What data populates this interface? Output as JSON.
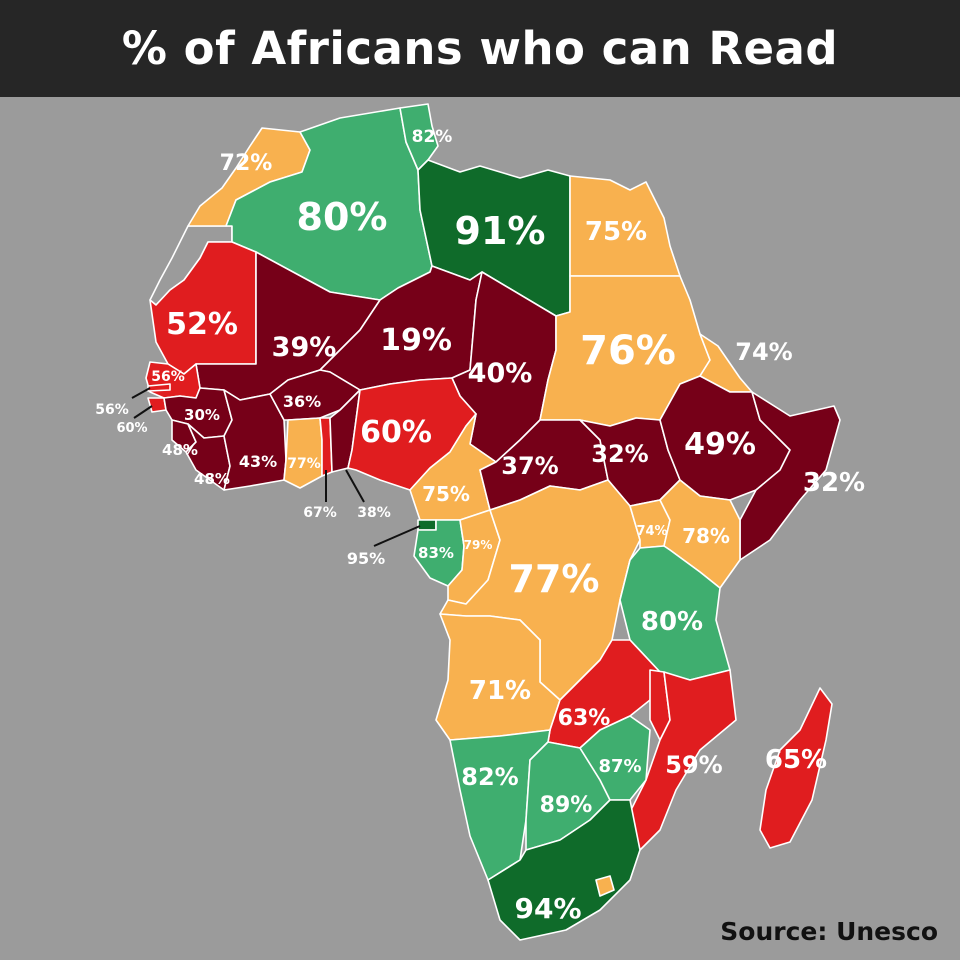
{
  "title": "% of Africans who can Read",
  "source": "Source: Unesco",
  "colors": {
    "background": "#9b9b9b",
    "title_bar": "#262626",
    "dark_green": "#0f6b2a",
    "light_green": "#3fae6f",
    "orange": "#f8b14f",
    "red": "#e01d1f",
    "maroon": "#760018",
    "border": "#ffffff"
  },
  "regions": {
    "morocco": {
      "name": "Morocco",
      "value": "72%"
    },
    "algeria": {
      "name": "Algeria",
      "value": "80%"
    },
    "tunisia": {
      "name": "Tunisia",
      "value": "82%"
    },
    "libya": {
      "name": "Libya",
      "value": "91%"
    },
    "egypt": {
      "name": "Egypt",
      "value": "75%"
    },
    "mauritania": {
      "name": "Mauritania",
      "value": "52%"
    },
    "mali": {
      "name": "Mali",
      "value": "39%"
    },
    "niger": {
      "name": "Niger",
      "value": "19%"
    },
    "chad": {
      "name": "Chad",
      "value": "40%"
    },
    "sudan": {
      "name": "Sudan",
      "value": "76%"
    },
    "eritrea": {
      "name": "Eritrea",
      "value": "74%"
    },
    "senegal": {
      "name": "Senegal",
      "value": "56%"
    },
    "gambia": {
      "name": "Gambia",
      "value": "56%"
    },
    "guinea_bissau": {
      "name": "Guinea-Bissau",
      "value": "60%"
    },
    "guinea": {
      "name": "Guinea",
      "value": "30%"
    },
    "sierra_leone": {
      "name": "Sierra Leone",
      "value": "48%"
    },
    "liberia": {
      "name": "Liberia",
      "value": "48%"
    },
    "ivory_coast": {
      "name": "Ivory Coast",
      "value": "43%"
    },
    "burkina_faso": {
      "name": "Burkina Faso",
      "value": "36%"
    },
    "ghana": {
      "name": "Ghana",
      "value": "77%"
    },
    "togo": {
      "name": "Togo",
      "value": "67%"
    },
    "benin": {
      "name": "Benin",
      "value": "38%"
    },
    "nigeria": {
      "name": "Nigeria",
      "value": "60%"
    },
    "cameroon": {
      "name": "Cameroon",
      "value": "75%"
    },
    "car": {
      "name": "Central African Republic",
      "value": "37%"
    },
    "south_sudan": {
      "name": "South Sudan",
      "value": "32%"
    },
    "ethiopia": {
      "name": "Ethiopia",
      "value": "49%"
    },
    "somalia": {
      "name": "Somalia",
      "value": "32%"
    },
    "equatorial_guinea": {
      "name": "Equatorial Guinea",
      "value": "95%"
    },
    "gabon": {
      "name": "Gabon",
      "value": "83%"
    },
    "congo": {
      "name": "Congo",
      "value": "79%"
    },
    "drc": {
      "name": "DR Congo",
      "value": "77%"
    },
    "uganda": {
      "name": "Uganda",
      "value": "74%"
    },
    "kenya": {
      "name": "Kenya",
      "value": "78%"
    },
    "tanzania": {
      "name": "Tanzania",
      "value": "80%"
    },
    "angola": {
      "name": "Angola",
      "value": "71%"
    },
    "zambia": {
      "name": "Zambia",
      "value": "63%"
    },
    "mozambique": {
      "name": "Mozambique",
      "value": "59%"
    },
    "madagascar": {
      "name": "Madagascar",
      "value": "65%"
    },
    "namibia": {
      "name": "Namibia",
      "value": "82%"
    },
    "botswana": {
      "name": "Botswana",
      "value": "89%"
    },
    "zimbabwe": {
      "name": "Zimbabwe",
      "value": "87%"
    },
    "south_africa": {
      "name": "South Africa",
      "value": "94%"
    }
  }
}
